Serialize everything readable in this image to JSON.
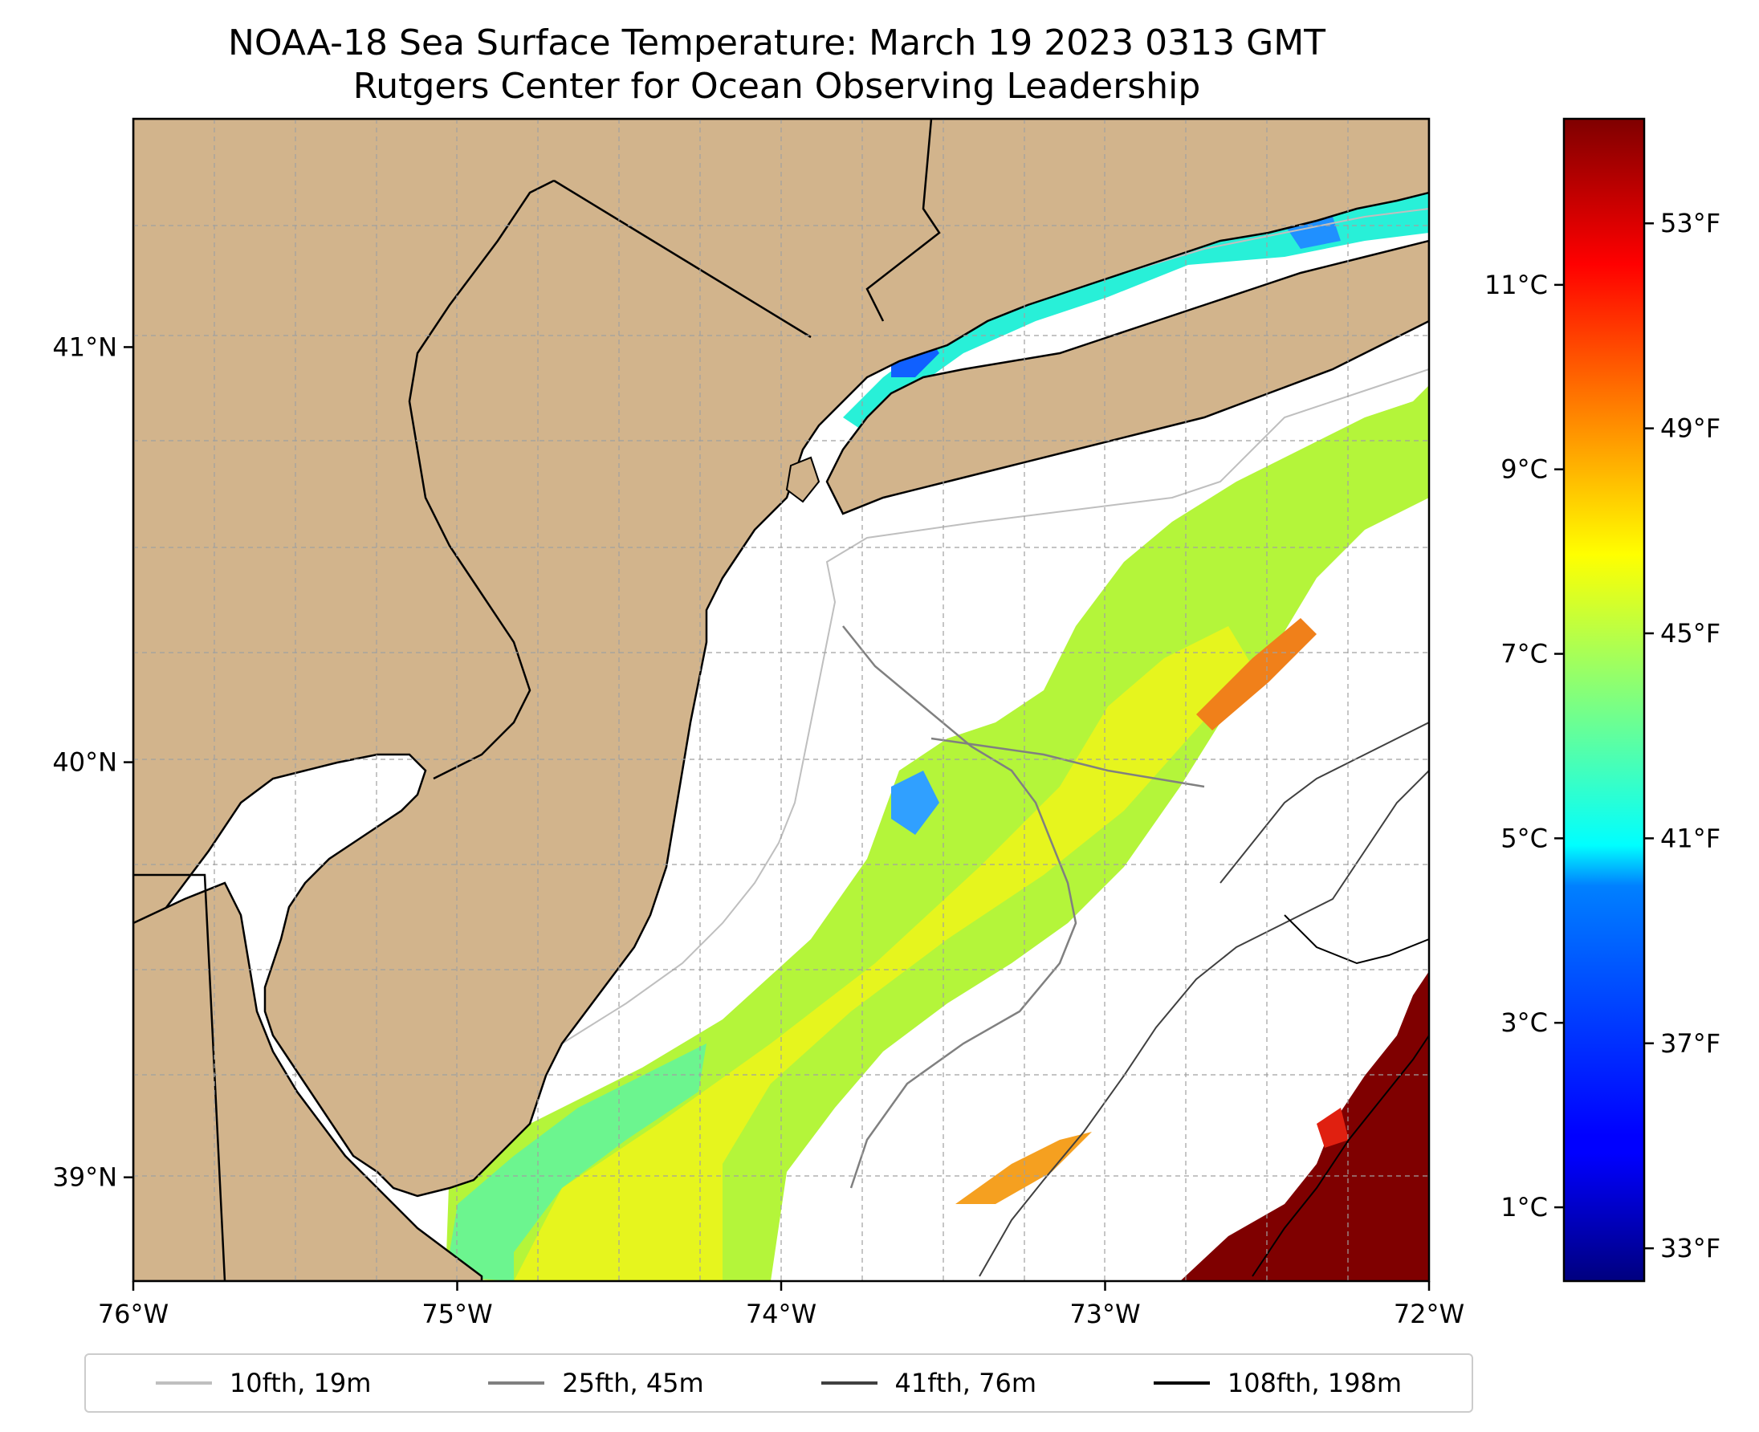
{
  "title": {
    "line1": "NOAA-18 Sea Surface Temperature: March 19 2023 0313 GMT",
    "line2": "Rutgers Center for Ocean Observing Leadership"
  },
  "map": {
    "lon_range": [
      -76.0,
      -72.0
    ],
    "lat_range": [
      38.75,
      41.55
    ],
    "lon_ticks": [
      {
        "value": -76,
        "label": "76°W"
      },
      {
        "value": -75,
        "label": "75°W"
      },
      {
        "value": -74,
        "label": "74°W"
      },
      {
        "value": -73,
        "label": "73°W"
      },
      {
        "value": -72,
        "label": "72°W"
      }
    ],
    "lat_ticks": [
      {
        "value": 41,
        "label": "41°N"
      },
      {
        "value": 40,
        "label": "40°N"
      },
      {
        "value": 39,
        "label": "39°N"
      }
    ],
    "gridlines": "dashed",
    "land_color": "#d2b48c",
    "nodata_color": "#ffffff"
  },
  "colorbar": {
    "colormap": "jet",
    "range_c": [
      0.2,
      12.8
    ],
    "celsius_ticks": [
      {
        "value": 1,
        "label": "1°C"
      },
      {
        "value": 3,
        "label": "3°C"
      },
      {
        "value": 5,
        "label": "5°C"
      },
      {
        "value": 7,
        "label": "7°C"
      },
      {
        "value": 9,
        "label": "9°C"
      },
      {
        "value": 11,
        "label": "11°C"
      }
    ],
    "fahrenheit_ticks": [
      {
        "value": 33,
        "label": "33°F"
      },
      {
        "value": 37,
        "label": "37°F"
      },
      {
        "value": 41,
        "label": "41°F"
      },
      {
        "value": 45,
        "label": "45°F"
      },
      {
        "value": 49,
        "label": "49°F"
      },
      {
        "value": 53,
        "label": "53°F"
      }
    ]
  },
  "legend": {
    "placement": "bottom",
    "items": [
      {
        "label": "10fth, 19m",
        "color": "#bfbfbf"
      },
      {
        "label": "25fth, 45m",
        "color": "#808080"
      },
      {
        "label": "41fth, 76m",
        "color": "#404040"
      },
      {
        "label": "108fth, 198m",
        "color": "#000000"
      }
    ]
  }
}
